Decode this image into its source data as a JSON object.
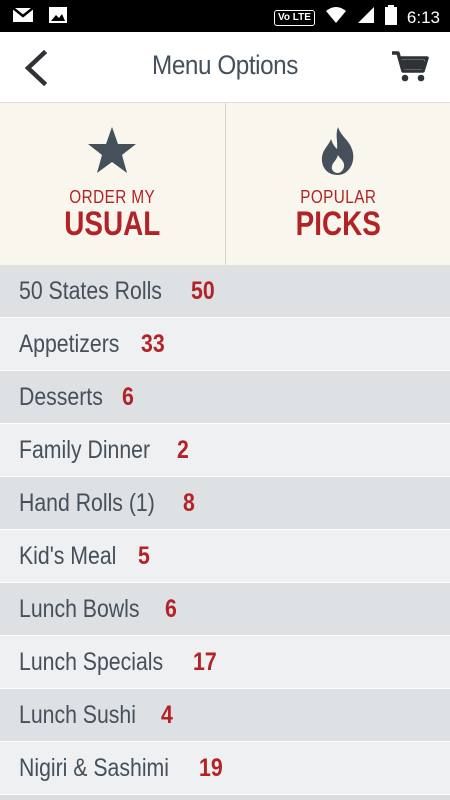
{
  "status_bar": {
    "icons_left": [
      "gmail-icon",
      "image-icon"
    ],
    "network_badge": "Vo LTE",
    "time": "6:13"
  },
  "header": {
    "title": "Menu Options",
    "back_icon": "chevron-left-icon",
    "cart_icon": "cart-icon"
  },
  "quick_actions": [
    {
      "line1": "ORDER MY",
      "line2": "USUAL",
      "icon": "star-icon"
    },
    {
      "line1": "POPULAR",
      "line2": "PICKS",
      "icon": "flame-icon"
    }
  ],
  "categories": [
    {
      "name": "50 States Rolls",
      "count": "50"
    },
    {
      "name": "Appetizers",
      "count": "33"
    },
    {
      "name": "Desserts",
      "count": "6"
    },
    {
      "name": "Family Dinner",
      "count": "2"
    },
    {
      "name": "Hand Rolls (1)",
      "count": "8"
    },
    {
      "name": "Kid's Meal",
      "count": "5"
    },
    {
      "name": "Lunch Bowls",
      "count": "6"
    },
    {
      "name": "Lunch Specials",
      "count": "17"
    },
    {
      "name": "Lunch Sushi",
      "count": "4"
    },
    {
      "name": "Nigiri & Sashimi",
      "count": "19"
    }
  ],
  "colors": {
    "accent_red": "#b32226",
    "text_slate": "#45505a",
    "tile_bg": "#f8f6ed"
  }
}
